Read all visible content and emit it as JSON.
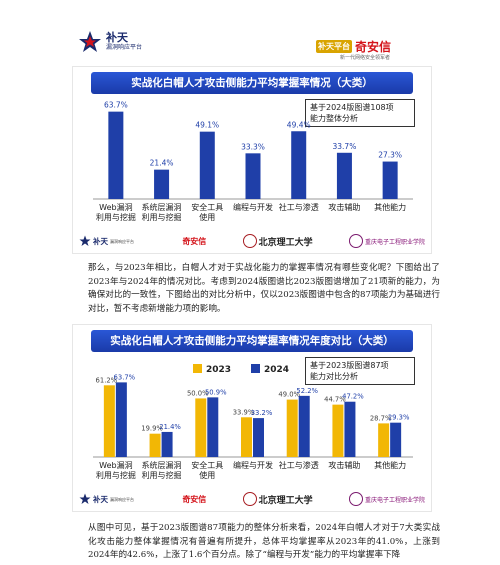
{
  "header": {
    "left_logo_name": "补天",
    "left_logo_sub": "漏洞响应平台",
    "right_logo_badge": "补天平台",
    "right_logo_name": "奇安信",
    "right_logo_sub": "新一代网络安全领军者"
  },
  "chart1": {
    "title": "实战化白帽人才攻击侧能力平均掌握率情况（大类）",
    "note_line1": "基于2024版图谱108项",
    "note_line2": "能力整体分析",
    "bar_color": "#1f3fa8",
    "label_color": "#1f3fa8"
  },
  "chart2": {
    "title": "实战化白帽人才攻击侧能力平均掌握率情况年度对比（大类）",
    "note_line1": "基于2023版图谱87项",
    "note_line2": "能力对比分析",
    "color_2023": "#f2b705",
    "color_2024": "#1f3fa8"
  },
  "chart_data": [
    {
      "type": "bar",
      "title": "实战化白帽人才攻击侧能力平均掌握率情况（大类）",
      "categories": [
        [
          "Web漏洞",
          "利用与挖掘"
        ],
        [
          "系统层漏洞",
          "利用与挖掘"
        ],
        [
          "安全工具",
          "使用"
        ],
        [
          "编程与开发"
        ],
        [
          "社工与渗透"
        ],
        [
          "攻击辅助"
        ],
        [
          "其他能力"
        ]
      ],
      "values": [
        63.7,
        21.4,
        49.1,
        33.3,
        49.4,
        33.7,
        27.3
      ],
      "value_labels": [
        "63.7%",
        "21.4%",
        "49.1%",
        "33.3%",
        "49.4%",
        "33.7%",
        "27.3%"
      ],
      "ylim": [
        0,
        70
      ]
    },
    {
      "type": "bar",
      "title": "实战化白帽人才攻击侧能力平均掌握率情况年度对比（大类）",
      "categories": [
        [
          "Web漏洞",
          "利用与挖掘"
        ],
        [
          "系统层漏洞",
          "利用与挖掘"
        ],
        [
          "安全工具",
          "使用"
        ],
        [
          "编程与开发"
        ],
        [
          "社工与渗透"
        ],
        [
          "攻击辅助"
        ],
        [
          "其他能力"
        ]
      ],
      "series": [
        {
          "name": "2023",
          "values": [
            61.2,
            19.9,
            50.0,
            33.9,
            49.0,
            44.7,
            28.7
          ],
          "value_labels": [
            "61.2%",
            "19.9%",
            "50.0%",
            "33.9%",
            "49.0%",
            "44.7%",
            "28.7%"
          ]
        },
        {
          "name": "2024",
          "values": [
            63.7,
            21.4,
            50.9,
            33.2,
            52.2,
            47.2,
            29.3
          ],
          "value_labels": [
            "63.7%",
            "21.4%",
            "50.9%",
            "33.2%",
            "52.2%",
            "47.2%",
            "29.3%"
          ]
        }
      ],
      "legend": "top-left",
      "ylim": [
        0,
        70
      ]
    }
  ],
  "footer": {
    "logo1": "补天",
    "logo1_sub": "漏洞响应平台",
    "logo2_text": "奇安信",
    "logo3_text": "北京理工大学",
    "logo4_text": "重庆电子工程职业学院"
  },
  "paragraphs": {
    "p1": "那么，与2023年相比，白帽人才对于实战化能力的掌握率情况有哪些变化呢？下图给出了2023年与2024年的情况对比。考虑到2024版图谱比2023版图谱增加了21项新的能力，为确保对比的一致性，下图给出的对比分析中，仅以2023版图谱中包含的87项能力为基础进行对比，暂不考虑新增能力项的影响。",
    "p2": "从图中可见，基于2023版图谱87项能力的整体分析来看，2024年白帽人才对于7大类实战化攻击能力整体掌握情况有普遍有所提升，总体平均掌握率从2023年的41.0%，上涨到2024年的42.6%，上涨了1.6个百分点。除了“编程与开发”能力的平均掌握率下降"
  }
}
